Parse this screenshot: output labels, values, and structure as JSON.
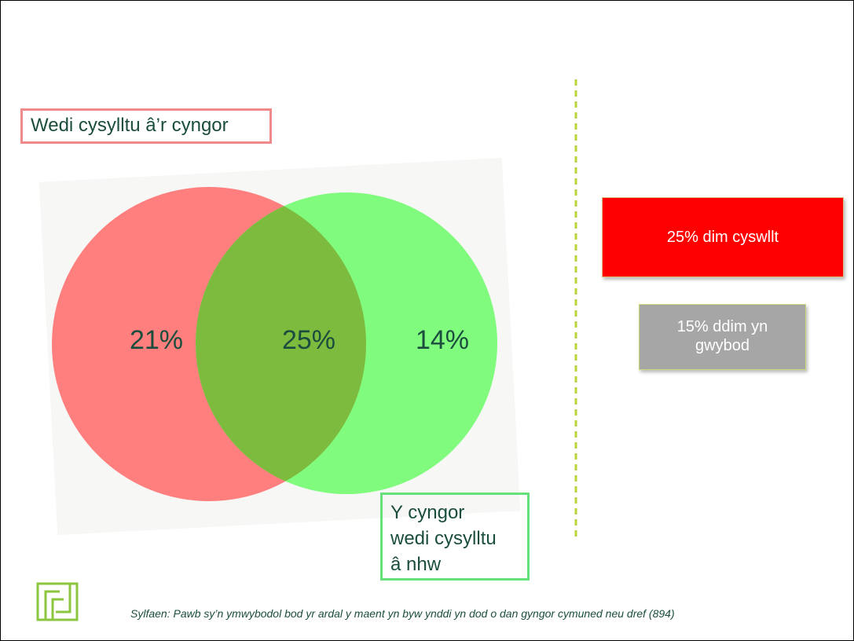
{
  "venn": {
    "left_set_label": "Wedi cysylltu â’r cyngor",
    "right_set_label": [
      "Y cyngor",
      "wedi cysylltu",
      "â nhw"
    ],
    "regions": {
      "left_only": "21%",
      "both": "25%",
      "right_only": "14%"
    }
  },
  "boxes": {
    "no_contact": "25% dim cyswllt",
    "dont_know": [
      "15% ddim yn",
      "gwybod"
    ]
  },
  "footnote": "Sylfaen: Pawb sy’n ymwybodol bod yr ardal y maent yn byw ynddi yn dod o dan gyngor cymuned neu dref (894)"
}
